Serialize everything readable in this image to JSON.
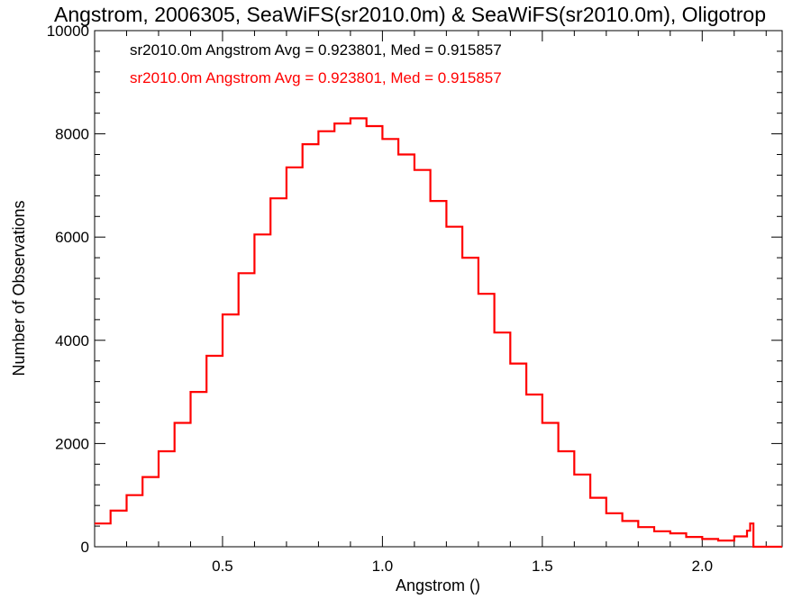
{
  "chart_data": {
    "type": "line",
    "title": "Angstrom, 2006305, SeaWiFS(sr2010.0m) & SeaWiFS(sr2010.0m), Oligotrop",
    "xlabel": "Angstrom ()",
    "ylabel": "Number of Observations",
    "xlim": [
      0.1,
      2.25
    ],
    "ylim": [
      0,
      10000
    ],
    "x_ticks": [
      0.5,
      1.0,
      1.5,
      2.0
    ],
    "x_tick_labels": [
      "0.5",
      "1.0",
      "1.5",
      "2.0"
    ],
    "y_ticks": [
      0,
      2000,
      4000,
      6000,
      8000,
      10000
    ],
    "y_tick_labels": [
      "0",
      "2000",
      "4000",
      "6000",
      "8000",
      "10000"
    ],
    "step_style": "histogram",
    "annotations": [
      {
        "text": "sr2010.0m Angstrom Avg = 0.923801, Med = 0.915857",
        "color": "#000000"
      },
      {
        "text": "sr2010.0m Angstrom Avg = 0.923801, Med = 0.915857",
        "color": "#ff0000"
      }
    ],
    "series": [
      {
        "color": "#ff0000",
        "x": [
          0.1,
          0.15,
          0.2,
          0.25,
          0.3,
          0.35,
          0.4,
          0.45,
          0.5,
          0.55,
          0.6,
          0.65,
          0.7,
          0.75,
          0.8,
          0.85,
          0.9,
          0.95,
          1.0,
          1.05,
          1.1,
          1.15,
          1.2,
          1.25,
          1.3,
          1.35,
          1.4,
          1.45,
          1.5,
          1.55,
          1.6,
          1.65,
          1.7,
          1.75,
          1.8,
          1.85,
          1.9,
          1.95,
          2.0,
          2.05,
          2.1,
          2.14,
          2.15,
          2.16,
          2.25
        ],
        "y": [
          450,
          700,
          1000,
          1350,
          1850,
          2400,
          3000,
          3700,
          4500,
          5300,
          6050,
          6750,
          7350,
          7800,
          8050,
          8200,
          8300,
          8150,
          7900,
          7600,
          7300,
          6700,
          6200,
          5600,
          4900,
          4150,
          3550,
          2950,
          2400,
          1850,
          1400,
          950,
          650,
          500,
          380,
          300,
          260,
          190,
          150,
          120,
          200,
          310,
          450,
          0,
          0
        ]
      }
    ]
  }
}
